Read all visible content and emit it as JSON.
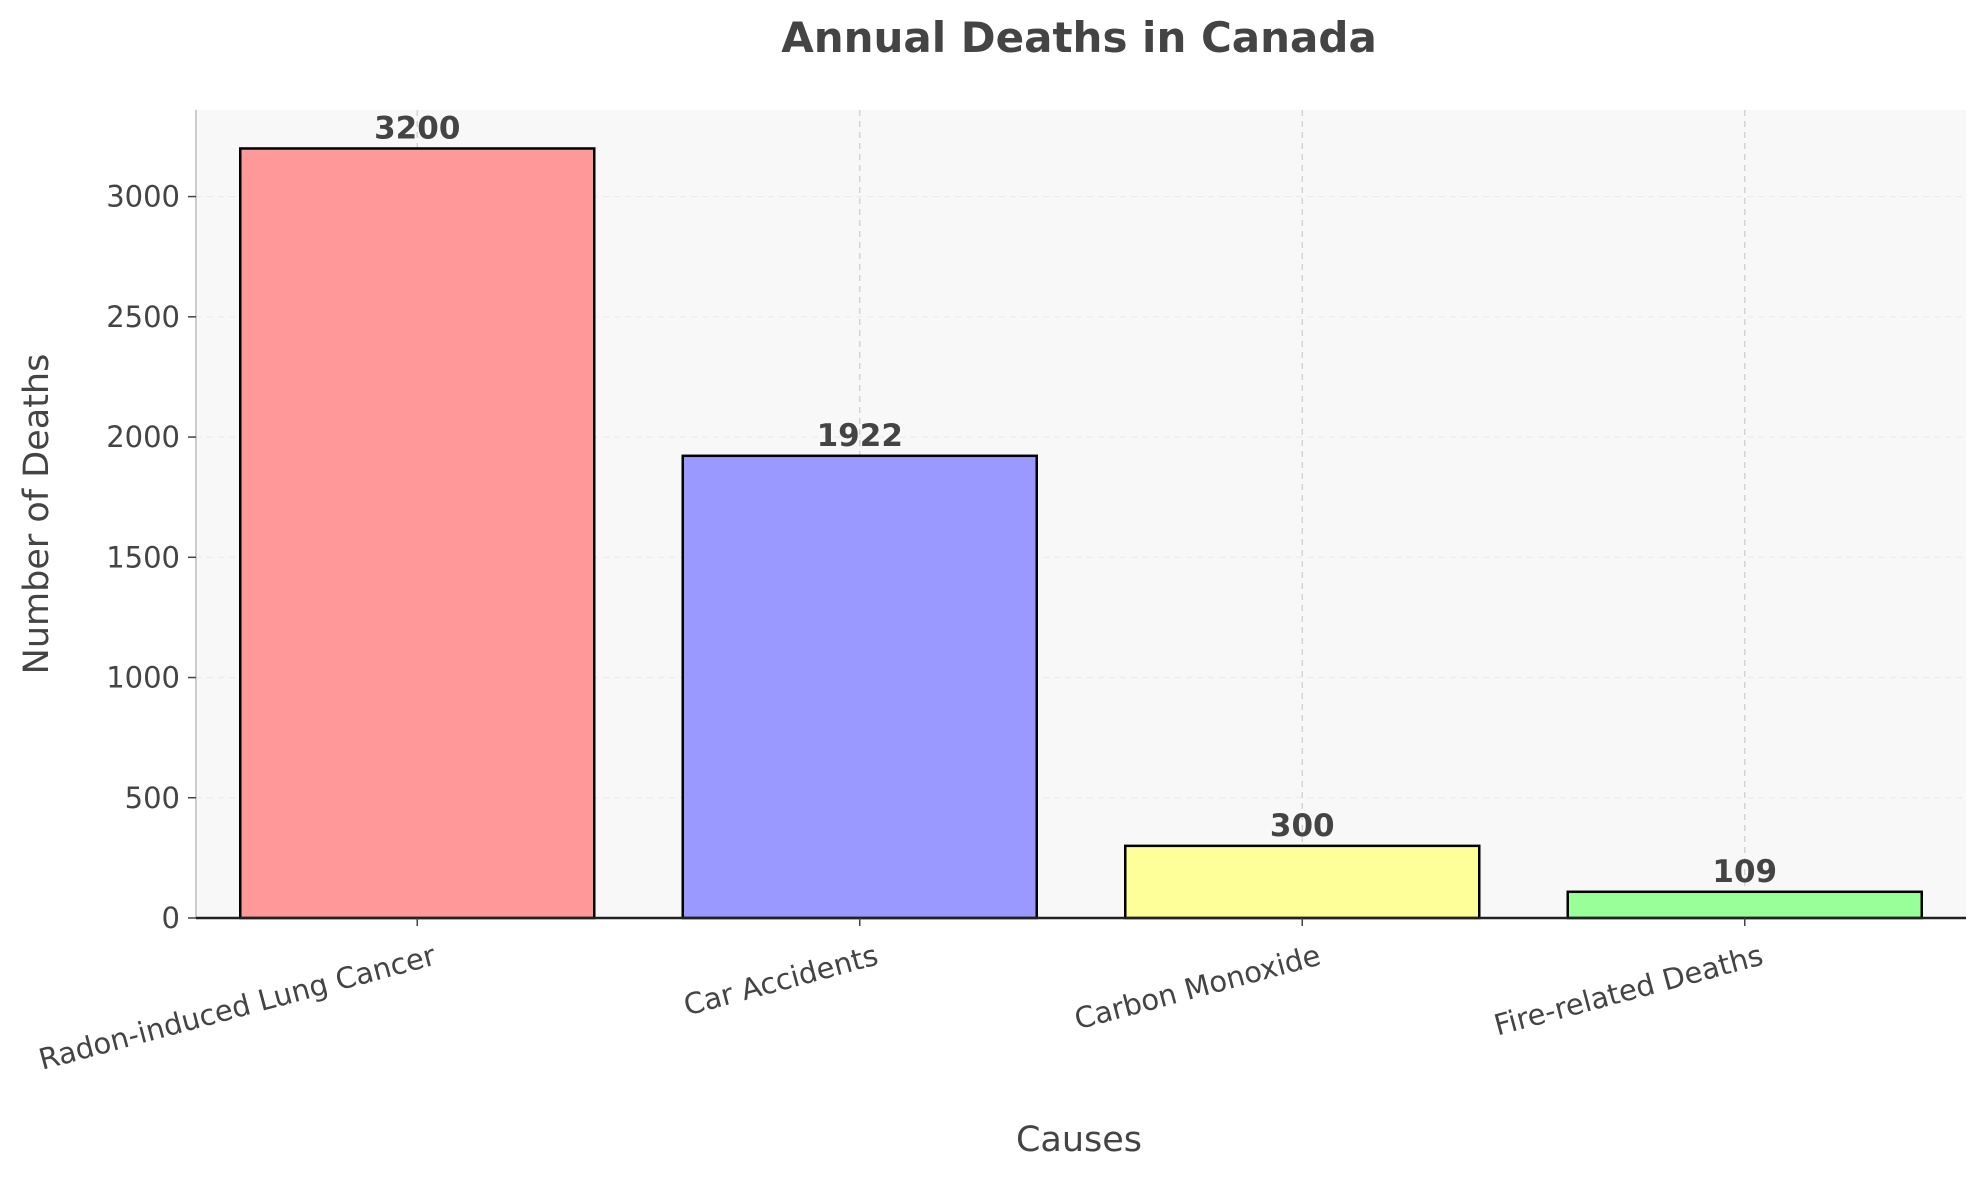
{
  "chart_data": {
    "type": "bar",
    "title": "Annual Deaths in Canada",
    "xlabel": "Causes",
    "ylabel": "Number of Deaths",
    "categories": [
      "Radon-induced Lung Cancer",
      "Car Accidents",
      "Carbon Monoxide",
      "Fire-related Deaths"
    ],
    "values": [
      3200,
      1922,
      300,
      109
    ],
    "value_labels": [
      "3200",
      "1922",
      "300",
      "109"
    ],
    "colors": [
      "#ff9999",
      "#9999ff",
      "#ffff99",
      "#99ff99"
    ],
    "ylim": [
      0,
      3360
    ],
    "yticks": [
      0,
      500,
      1000,
      1500,
      2000,
      2500,
      3000
    ],
    "ytick_labels": [
      "0",
      "500",
      "1000",
      "1500",
      "2000",
      "2500",
      "3000"
    ],
    "grid": true,
    "plot_background": "#f8f8f8",
    "bar_edge_color": "#000000",
    "text_color": "#444444"
  }
}
